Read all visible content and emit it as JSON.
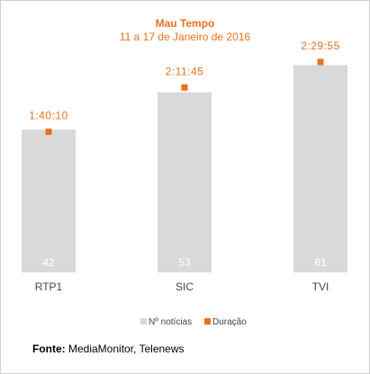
{
  "chart_data": {
    "type": "bar",
    "title": "Mau Tempo",
    "subtitle": "11 a 17 de Janeiro de 2016",
    "categories": [
      "RTP1",
      "SIC",
      "TVI"
    ],
    "series": [
      {
        "name": "Nº notícias",
        "values": [
          42,
          53,
          61
        ],
        "color": "#d9d9d9",
        "label_color": "#ffffff"
      },
      {
        "name": "Duração",
        "values": [
          "1:40:10",
          "2:11:45",
          "2:29:55"
        ],
        "values_seconds": [
          6010,
          7905,
          8995
        ],
        "color": "#e8711c",
        "label_color": "#e8711c"
      }
    ],
    "legend_position": "bottom",
    "grid": false
  },
  "footer": {
    "label": "Fonte:",
    "text": "MediaMonitor, Telenews"
  }
}
